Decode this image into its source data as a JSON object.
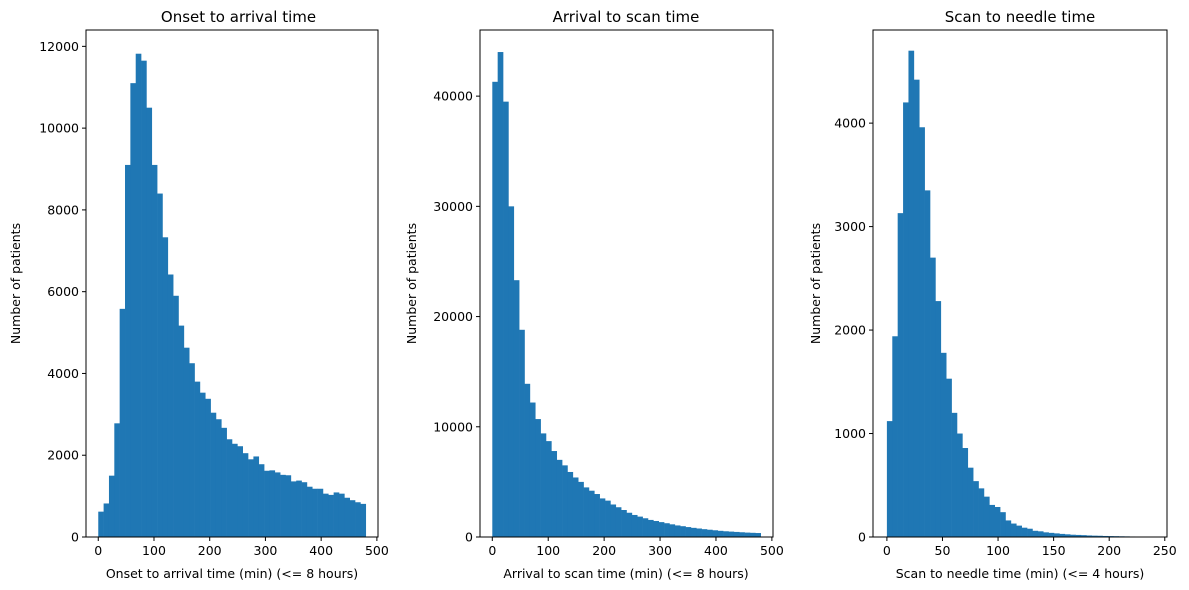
{
  "chart_data": [
    {
      "type": "bar",
      "title": "Onset to arrival time",
      "xlabel": "Onset to arrival time (min) (<= 8 hours)",
      "ylabel": "Number of patients",
      "xlim": [
        -22,
        502
      ],
      "ylim": [
        0,
        12400
      ],
      "xticks": [
        0,
        100,
        200,
        300,
        400,
        500
      ],
      "yticks": [
        0,
        2000,
        4000,
        6000,
        8000,
        10000,
        12000
      ],
      "bin_start": 0,
      "bin_width": 9.6,
      "values": [
        620,
        820,
        1500,
        2780,
        5580,
        9100,
        11100,
        11820,
        11650,
        10500,
        9100,
        8400,
        7330,
        6420,
        5900,
        5170,
        4630,
        4250,
        3800,
        3530,
        3380,
        3040,
        2880,
        2670,
        2390,
        2280,
        2220,
        2050,
        1900,
        1970,
        1780,
        1620,
        1630,
        1580,
        1520,
        1510,
        1360,
        1380,
        1340,
        1230,
        1180,
        1180,
        1060,
        1030,
        1090,
        1060,
        960,
        900,
        850,
        810
      ]
    },
    {
      "type": "bar",
      "title": "Arrival to scan time",
      "xlabel": "Arrival to scan time (min) (<= 8 hours)",
      "ylabel": "Number of patients",
      "xlim": [
        -22,
        502
      ],
      "ylim": [
        0,
        46000
      ],
      "xticks": [
        0,
        100,
        200,
        300,
        400,
        500
      ],
      "yticks": [
        0,
        10000,
        20000,
        30000,
        40000
      ],
      "bin_start": 0,
      "bin_width": 9.6,
      "values": [
        41300,
        44000,
        39500,
        30000,
        23300,
        18800,
        13900,
        12200,
        10700,
        9400,
        8700,
        7800,
        7000,
        6500,
        5900,
        5400,
        5000,
        4500,
        4200,
        3900,
        3500,
        3300,
        2950,
        2700,
        2450,
        2200,
        2000,
        1850,
        1700,
        1550,
        1450,
        1350,
        1250,
        1150,
        1050,
        980,
        900,
        830,
        770,
        710,
        660,
        610,
        560,
        520,
        490,
        460,
        430,
        400,
        380,
        360
      ]
    },
    {
      "type": "bar",
      "title": "Scan to needle time",
      "xlabel": "Scan to needle time (min) (<= 4 hours)",
      "ylabel": "Number of patients",
      "xlim": [
        -12.5,
        252
      ],
      "ylim": [
        0,
        4900
      ],
      "xticks": [
        0,
        50,
        100,
        150,
        200,
        250
      ],
      "yticks": [
        0,
        1000,
        2000,
        3000,
        4000
      ],
      "bin_start": 0,
      "bin_width": 4.85,
      "values": [
        1120,
        1940,
        3130,
        4200,
        4700,
        4420,
        3960,
        3350,
        2700,
        2280,
        1780,
        1530,
        1200,
        1000,
        860,
        670,
        540,
        470,
        390,
        310,
        290,
        240,
        160,
        130,
        110,
        90,
        80,
        60,
        55,
        45,
        40,
        35,
        30,
        26,
        22,
        20,
        18,
        15,
        13,
        12,
        10,
        9,
        8,
        7,
        6,
        5,
        4,
        4,
        3,
        3
      ]
    }
  ]
}
